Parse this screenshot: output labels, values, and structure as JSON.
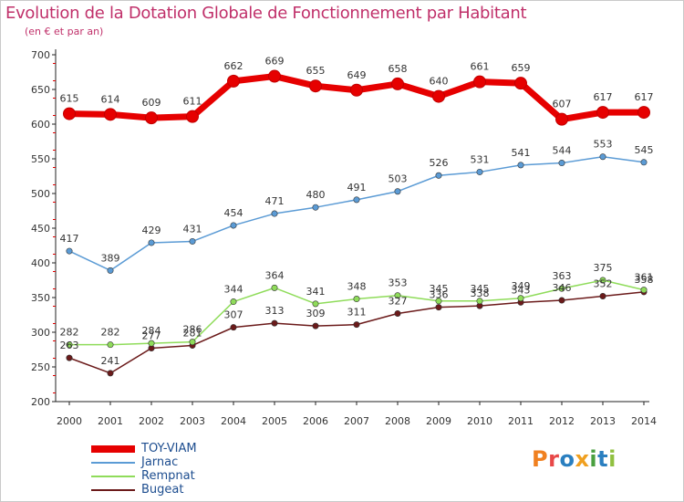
{
  "title": "Evolution de la Dotation Globale de Fonctionnement par Habitant",
  "subtitle": "(en € et par an)",
  "logo": {
    "text": "Proxiti",
    "colors": [
      "#f08020",
      "#e84848",
      "#2a7fc0",
      "#f0a020",
      "#4aa040",
      "#2a7fc0",
      "#90c040"
    ]
  },
  "chart_data": {
    "type": "line",
    "x": [
      "2000",
      "2001",
      "2002",
      "2003",
      "2004",
      "2005",
      "2006",
      "2007",
      "2008",
      "2009",
      "2010",
      "2011",
      "2012",
      "2013",
      "2014"
    ],
    "ylim": [
      200,
      700
    ],
    "yticks": [
      200,
      250,
      300,
      350,
      400,
      450,
      500,
      550,
      600,
      650,
      700
    ],
    "grid": false,
    "legend_position": "bottom-left",
    "series": [
      {
        "name": "TOY-VIAM",
        "color": "#e60000",
        "emphasis": true,
        "values": [
          615,
          614,
          609,
          611,
          662,
          669,
          655,
          649,
          658,
          640,
          661,
          659,
          607,
          617,
          617
        ]
      },
      {
        "name": "Jarnac",
        "color": "#5b9bd5",
        "values": [
          417,
          389,
          429,
          431,
          454,
          471,
          480,
          491,
          503,
          526,
          531,
          541,
          544,
          553,
          545
        ]
      },
      {
        "name": "Rempnat",
        "color": "#8fdc5a",
        "values": [
          282,
          282,
          284,
          286,
          344,
          364,
          341,
          348,
          353,
          345,
          345,
          349,
          363,
          375,
          361
        ]
      },
      {
        "name": "Bugeat",
        "color": "#6b1a1a",
        "values": [
          263,
          241,
          277,
          281,
          307,
          313,
          309,
          311,
          327,
          336,
          338,
          343,
          346,
          352,
          358
        ]
      }
    ]
  }
}
